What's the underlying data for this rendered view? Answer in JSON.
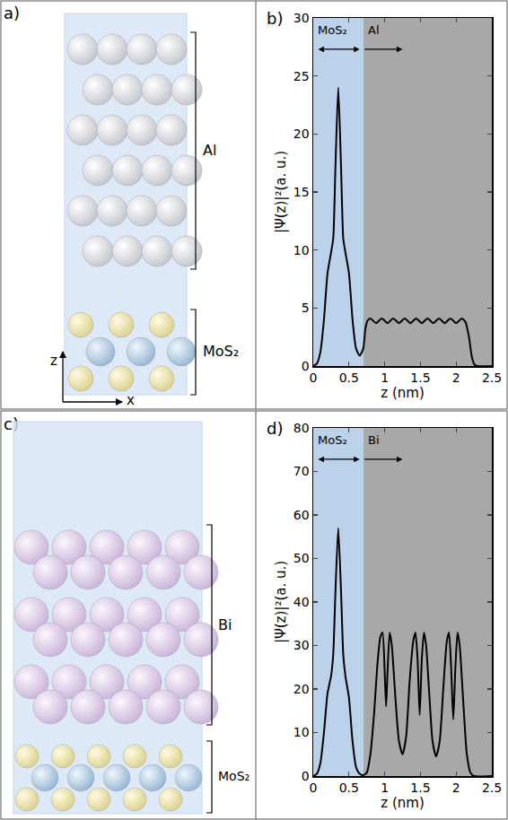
{
  "diagrams": [
    {
      "label": "a)",
      "metal": "Al",
      "substrate": "MoS₂",
      "axes": {
        "x": "x",
        "z": "z"
      }
    },
    {
      "label": "c)",
      "metal": "Bi",
      "substrate": "MoS₂"
    }
  ],
  "chart_data": [
    {
      "panel": "b)",
      "type": "line",
      "xlabel": "z (nm)",
      "ylabel": "|Ψ(z)|²(a. u.)",
      "x": [
        0,
        0.05,
        0.1,
        0.15,
        0.2,
        0.25,
        0.28,
        0.31,
        0.35,
        0.39,
        0.42,
        0.45,
        0.5,
        0.55,
        0.6,
        0.65,
        0.7,
        0.73,
        0.76,
        0.8,
        0.88,
        0.96,
        1.04,
        1.12,
        1.2,
        1.28,
        1.36,
        1.44,
        1.52,
        1.6,
        1.68,
        1.76,
        1.84,
        1.92,
        2.0,
        2.08,
        2.13,
        2.18,
        2.22,
        2.26,
        2.3,
        2.5
      ],
      "series": [
        {
          "color": "#000000",
          "values": [
            0,
            0.2,
            1.2,
            4,
            8,
            9.8,
            11,
            17,
            24,
            17,
            11,
            9.8,
            8,
            4,
            1.5,
            0.9,
            1.5,
            3.2,
            3.9,
            4.1,
            3.7,
            4.1,
            3.7,
            4.1,
            3.7,
            4.1,
            3.7,
            4.1,
            3.7,
            4.1,
            3.7,
            4.1,
            3.7,
            4.1,
            3.7,
            4.1,
            3.8,
            2.5,
            0.8,
            0.1,
            0,
            0
          ]
        }
      ],
      "xlim": [
        0,
        2.5
      ],
      "ylim": [
        0,
        30
      ],
      "xticks": [
        0,
        0.5,
        1,
        1.5,
        2,
        2.5
      ],
      "yticks": [
        0,
        5,
        10,
        15,
        20,
        25,
        30
      ],
      "grid": false,
      "regions": [
        {
          "label": "MoS₂",
          "from": 0,
          "to": 0.7,
          "color": "#bcd2ea"
        },
        {
          "label": "Al",
          "from": 0.7,
          "to": 2.5,
          "color": "#a8a8a8"
        }
      ]
    },
    {
      "panel": "d)",
      "type": "line",
      "xlabel": "z (nm)",
      "ylabel": "|Ψ(z)|²(a. u.)",
      "x": [
        0,
        0.05,
        0.1,
        0.15,
        0.2,
        0.25,
        0.28,
        0.31,
        0.35,
        0.39,
        0.42,
        0.45,
        0.5,
        0.55,
        0.6,
        0.65,
        0.7,
        0.75,
        0.8,
        0.85,
        0.9,
        0.94,
        0.97,
        1.0,
        1.02,
        1.04,
        1.07,
        1.1,
        1.15,
        1.2,
        1.25,
        1.3,
        1.35,
        1.4,
        1.43,
        1.46,
        1.49,
        1.52,
        1.55,
        1.58,
        1.62,
        1.67,
        1.72,
        1.77,
        1.82,
        1.87,
        1.9,
        1.93,
        1.96,
        1.99,
        2.02,
        2.05,
        2.1,
        2.15,
        2.2,
        2.25,
        2.5
      ],
      "series": [
        {
          "color": "#000000",
          "values": [
            0,
            0.5,
            3,
            10,
            19,
            23,
            28,
            42,
            57,
            42,
            28,
            23,
            18,
            8,
            2,
            0.5,
            0.2,
            0.8,
            5,
            14,
            26,
            32,
            33,
            24,
            16,
            24,
            33,
            30,
            18,
            8,
            5,
            9,
            22,
            31,
            33,
            27,
            14,
            27,
            33,
            30,
            20,
            8,
            4.5,
            8,
            20,
            31,
            33,
            25,
            13,
            25,
            33,
            30,
            17,
            5,
            0.8,
            0,
            0
          ]
        }
      ],
      "xlim": [
        0,
        2.5
      ],
      "ylim": [
        0,
        80
      ],
      "xticks": [
        0,
        0.5,
        1,
        1.5,
        2,
        2.5
      ],
      "yticks": [
        0,
        10,
        20,
        30,
        40,
        50,
        60,
        70,
        80
      ],
      "grid": false,
      "regions": [
        {
          "label": "MoS₂",
          "from": 0,
          "to": 0.7,
          "color": "#bcd2ea"
        },
        {
          "label": "Bi",
          "from": 0.7,
          "to": 2.5,
          "color": "#a8a8a8"
        }
      ]
    }
  ]
}
